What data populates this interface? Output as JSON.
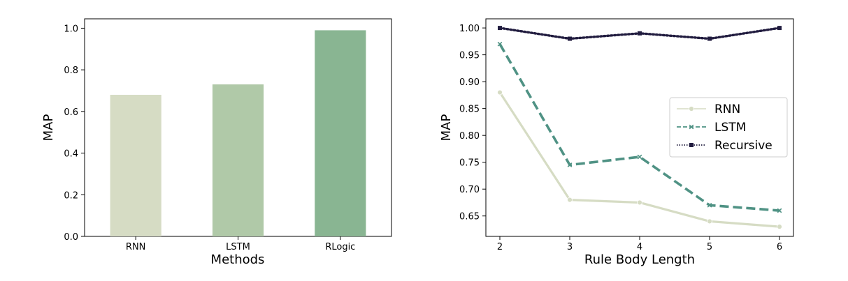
{
  "chart_data": [
    {
      "type": "bar",
      "categories": [
        "RNN",
        "LSTM",
        "RLogic"
      ],
      "values": [
        0.68,
        0.73,
        0.99
      ],
      "colors": [
        "#d6dcc4",
        "#b0c9a8",
        "#89b592"
      ],
      "xlabel": "Methods",
      "ylabel": "MAP",
      "ylim": [
        0.0,
        1.045
      ],
      "yticks": [
        "0.0",
        "0.2",
        "0.4",
        "0.6",
        "0.8",
        "1.0"
      ],
      "grid": false
    },
    {
      "type": "line",
      "x": [
        2,
        3,
        4,
        5,
        6
      ],
      "xticks": [
        "2",
        "3",
        "4",
        "5",
        "6"
      ],
      "series": [
        {
          "name": "RNN",
          "values": [
            0.88,
            0.68,
            0.675,
            0.64,
            0.63
          ],
          "color": "#d6dcc4",
          "style": "solid",
          "marker": "circle"
        },
        {
          "name": "LSTM",
          "values": [
            0.97,
            0.745,
            0.76,
            0.67,
            0.66
          ],
          "color": "#4f9284",
          "style": "dashed",
          "marker": "x"
        },
        {
          "name": "Recursive",
          "values": [
            1.0,
            0.98,
            0.99,
            0.98,
            1.0
          ],
          "color": "#211c3f",
          "style": "dotted",
          "marker": "square"
        }
      ],
      "xlabel": "Rule Body Length",
      "ylabel": "MAP",
      "xlim": [
        1.8,
        6.2
      ],
      "ylim": [
        0.612,
        1.017
      ],
      "yticks": [
        "0.65",
        "0.70",
        "0.75",
        "0.80",
        "0.85",
        "0.90",
        "0.95",
        "1.00"
      ],
      "legend_position": "center-right",
      "grid": false
    }
  ]
}
